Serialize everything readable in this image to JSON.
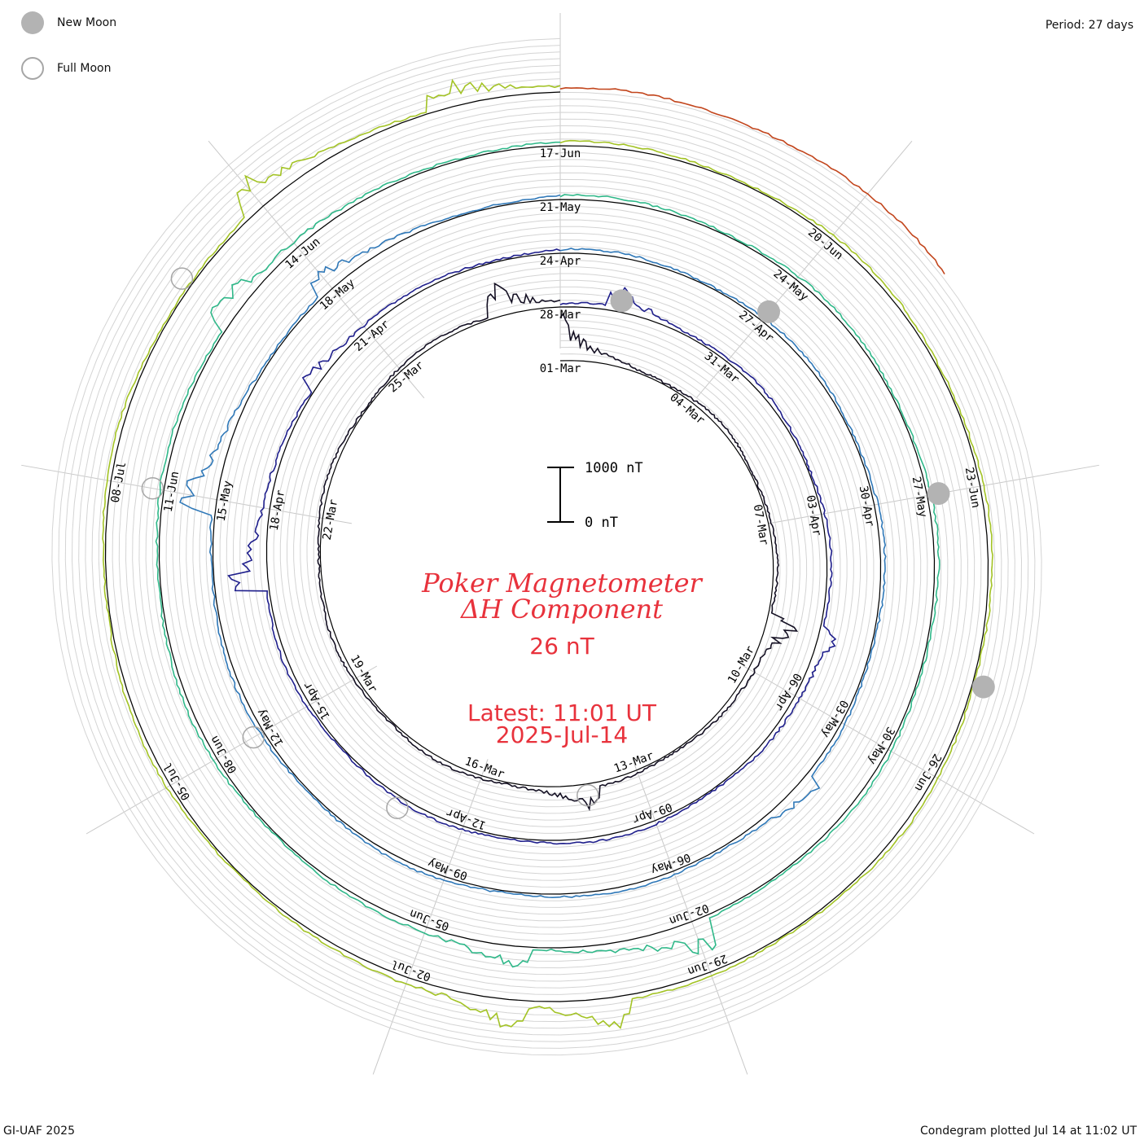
{
  "legend": {
    "new_moon": {
      "label": "New Moon",
      "fill": "#b3b3b3"
    },
    "full_moon": {
      "label": "Full Moon",
      "stroke": "#a6a6a6"
    }
  },
  "period_label": "Period: 27 days",
  "center": {
    "title_line1": "Poker Magnetometer",
    "title_line2": "ΔH Component",
    "current_value": "26 nT",
    "latest_time": "Latest: 11:01 UT",
    "latest_date": "2025-Jul-14",
    "color": "#e8323c"
  },
  "footer": {
    "left": "GI-UAF 2025",
    "right": "Condegram plotted Jul 14 at 11:02 UT"
  },
  "chart_data": {
    "type": "line",
    "subtype": "condegram-spiral",
    "title": "Poker Magnetometer ΔH Component",
    "period_days": 27,
    "scale_bar": {
      "top_label": "1000 nT",
      "bottom_label": "0 nT",
      "span_nT": 1000
    },
    "latest_value_nT": 26,
    "date_labels": [
      "01-Mar",
      "04-Mar",
      "07-Mar",
      "10-Mar",
      "13-Mar",
      "16-Mar",
      "19-Mar",
      "22-Mar",
      "25-Mar",
      "28-Mar",
      "31-Mar",
      "03-Apr",
      "06-Apr",
      "09-Apr",
      "12-Apr",
      "15-Apr",
      "18-Apr",
      "21-Apr",
      "24-Apr",
      "27-Apr",
      "30-Apr",
      "03-May",
      "06-May",
      "09-May",
      "12-May",
      "15-May",
      "18-May",
      "21-May",
      "24-May",
      "27-May",
      "30-May",
      "02-Jun",
      "05-Jun",
      "08-Jun",
      "11-Jun",
      "14-Jun",
      "17-Jun",
      "20-Jun",
      "23-Jun",
      "26-Jun",
      "29-Jun",
      "02-Jul",
      "05-Jul",
      "08-Jul"
    ],
    "rotations": [
      {
        "start": "2025-03-01",
        "color": "#141023",
        "disturbances": [
          {
            "date": "2025-03-01",
            "nT": 900
          },
          {
            "date": "2025-03-09",
            "nT": 600
          },
          {
            "date": "2025-03-14",
            "nT": 450
          },
          {
            "date": "2025-03-27",
            "nT": 650
          }
        ]
      },
      {
        "start": "2025-03-28",
        "color": "#1f1f8c",
        "disturbances": [
          {
            "date": "2025-03-29",
            "nT": 400
          },
          {
            "date": "2025-04-05",
            "nT": 380
          },
          {
            "date": "2025-04-17",
            "nT": 800
          },
          {
            "date": "2025-04-20",
            "nT": 350
          }
        ]
      },
      {
        "start": "2025-04-24",
        "color": "#2f78b8",
        "disturbances": [
          {
            "date": "2025-05-04",
            "nT": 350
          },
          {
            "date": "2025-05-15",
            "nT": 800
          },
          {
            "date": "2025-05-18",
            "nT": 450
          }
        ]
      },
      {
        "start": "2025-05-21",
        "color": "#2fb889",
        "disturbances": [
          {
            "date": "2025-06-02",
            "nT": 700
          },
          {
            "date": "2025-06-04",
            "nT": 500
          },
          {
            "date": "2025-06-13",
            "nT": 650
          }
        ]
      },
      {
        "start": "2025-06-17",
        "color": "#a3c325",
        "disturbances": [
          {
            "date": "2025-06-30",
            "nT": 600
          },
          {
            "date": "2025-07-01",
            "nT": 500
          },
          {
            "date": "2025-07-11",
            "nT": 700
          },
          {
            "date": "2025-07-13",
            "nT": 500
          }
        ]
      },
      {
        "start": "2025-07-14",
        "color": "#c2451c",
        "disturbances": []
      }
    ],
    "new_moons": [
      "2025-03-29",
      "2025-04-27",
      "2025-05-27",
      "2025-06-25"
    ],
    "full_moons": [
      "2025-03-14",
      "2025-04-13",
      "2025-05-12",
      "2025-06-11",
      "2025-07-10"
    ],
    "colors": [
      "#141023",
      "#1f1f8c",
      "#2f78b8",
      "#2fb889",
      "#a3c325",
      "#c8a21a",
      "#c2451c",
      "#c21a1a"
    ]
  }
}
